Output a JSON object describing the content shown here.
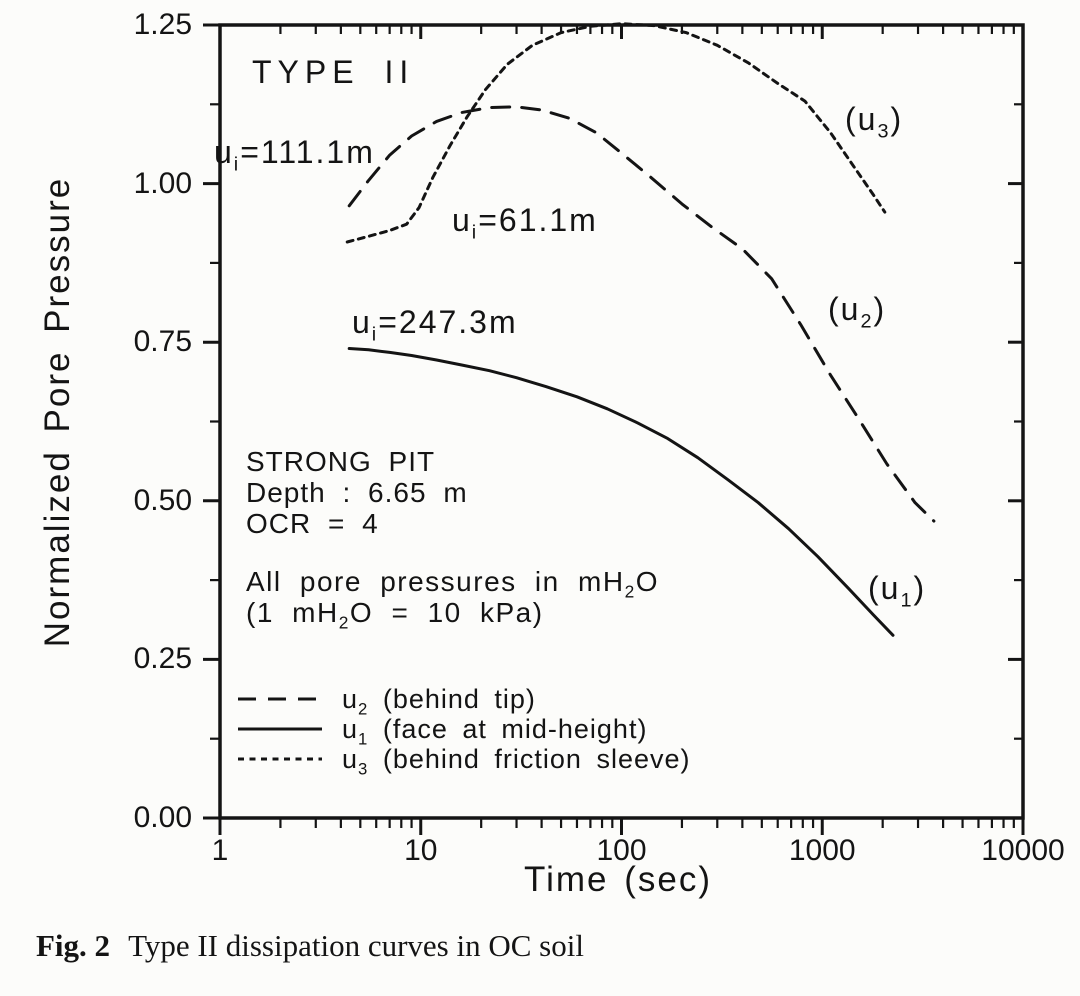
{
  "colors": {
    "ink": "#141414",
    "background": "#fcfcfa"
  },
  "axes": {
    "xlabel": "Time  (sec)",
    "ylabel": "Normalized Pore Pressure"
  },
  "caption": {
    "fig_label": "Fig. 2",
    "text": "Type II dissipation curves in OC soil"
  },
  "annotations": {
    "type_label": "TYPE II",
    "ui_111": {
      "pre": "u",
      "sub": "i",
      "post": "=111.1m"
    },
    "ui_61": {
      "pre": "u",
      "sub": "i",
      "post": "=61.1m"
    },
    "ui_247": {
      "pre": "u",
      "sub": "i",
      "post": "=247.3m"
    },
    "u3_tag": {
      "pre": "(u",
      "sub": "3",
      "post": ")"
    },
    "u2_tag": {
      "pre": "(u",
      "sub": "2",
      "post": ")"
    },
    "u1_tag": {
      "pre": "(u",
      "sub": "1",
      "post": ")"
    },
    "site_info": {
      "line1": "STRONG PIT",
      "line2": "Depth : 6.65 m",
      "line3": "OCR = 4"
    },
    "units_note": {
      "line1_pre": "All pore pressures in mH",
      "line1_sub": "2",
      "line1_post": "O",
      "line2_pre": "(1 mH",
      "line2_sub": "2",
      "line2_post": "O = 10 kPa)"
    }
  },
  "legend": {
    "items": [
      {
        "symbol": "dashed",
        "pre": "u",
        "sub": "2",
        "post": " (behind tip)"
      },
      {
        "symbol": "solid",
        "pre": "u",
        "sub": "1",
        "post": " (face at mid-height)"
      },
      {
        "symbol": "dotted",
        "pre": "u",
        "sub": "3",
        "post": " (behind friction sleeve)"
      }
    ]
  },
  "chart_data": {
    "type": "line",
    "title": "TYPE II",
    "xlabel": "Time (sec)",
    "ylabel": "Normalized Pore Pressure",
    "x_scale": "log",
    "xlim": [
      1,
      10000
    ],
    "ylim": [
      0,
      1.25
    ],
    "grid": false,
    "x_ticks": [
      1,
      10,
      100,
      1000,
      10000
    ],
    "x_tick_labels": [
      "1",
      "10",
      "100",
      "1000",
      "10000"
    ],
    "y_ticks": [
      0,
      0.25,
      0.5,
      0.75,
      1.0,
      1.25
    ],
    "y_tick_labels": [
      "0.00",
      "0.25",
      "0.50",
      "0.75",
      "1.00",
      "1.25"
    ],
    "y_minor_step": 0.125,
    "series": [
      {
        "name": "u2",
        "label": "u2 (behind tip)",
        "initial_pore_pressure": "ui=111.1m",
        "style": "dashed",
        "points": [
          [
            4.4,
            0.965
          ],
          [
            5.5,
            1.005
          ],
          [
            7,
            1.045
          ],
          [
            9,
            1.075
          ],
          [
            12,
            1.098
          ],
          [
            16,
            1.112
          ],
          [
            22,
            1.12
          ],
          [
            30,
            1.121
          ],
          [
            40,
            1.116
          ],
          [
            55,
            1.103
          ],
          [
            75,
            1.08
          ],
          [
            100,
            1.048
          ],
          [
            140,
            1.01
          ],
          [
            200,
            0.968
          ],
          [
            280,
            0.932
          ],
          [
            400,
            0.897
          ],
          [
            560,
            0.85
          ],
          [
            780,
            0.778
          ],
          [
            1100,
            0.698
          ],
          [
            1500,
            0.632
          ],
          [
            2100,
            0.558
          ],
          [
            2900,
            0.497
          ],
          [
            3600,
            0.468
          ]
        ]
      },
      {
        "name": "u1",
        "label": "u1 (face at mid-height)",
        "initial_pore_pressure": "ui=247.3m",
        "style": "solid",
        "points": [
          [
            4.4,
            0.74
          ],
          [
            5.5,
            0.738
          ],
          [
            7,
            0.734
          ],
          [
            9,
            0.729
          ],
          [
            12,
            0.722
          ],
          [
            16,
            0.714
          ],
          [
            22,
            0.705
          ],
          [
            30,
            0.694
          ],
          [
            42,
            0.68
          ],
          [
            60,
            0.664
          ],
          [
            85,
            0.645
          ],
          [
            120,
            0.623
          ],
          [
            170,
            0.598
          ],
          [
            240,
            0.568
          ],
          [
            340,
            0.533
          ],
          [
            480,
            0.497
          ],
          [
            680,
            0.456
          ],
          [
            950,
            0.412
          ],
          [
            1350,
            0.362
          ],
          [
            1800,
            0.32
          ],
          [
            2250,
            0.288
          ]
        ]
      },
      {
        "name": "u3",
        "label": "u3 (behind friction sleeve)",
        "initial_pore_pressure": "ui=61.1m",
        "style": "dotted",
        "points": [
          [
            4.3,
            0.908
          ],
          [
            5.5,
            0.917
          ],
          [
            7,
            0.926
          ],
          [
            8.5,
            0.936
          ],
          [
            9.8,
            0.962
          ],
          [
            11.5,
            1.01
          ],
          [
            14,
            1.06
          ],
          [
            17,
            1.105
          ],
          [
            21,
            1.148
          ],
          [
            27,
            1.188
          ],
          [
            36,
            1.218
          ],
          [
            50,
            1.238
          ],
          [
            70,
            1.248
          ],
          [
            100,
            1.252
          ],
          [
            145,
            1.249
          ],
          [
            210,
            1.238
          ],
          [
            300,
            1.218
          ],
          [
            430,
            1.19
          ],
          [
            600,
            1.158
          ],
          [
            820,
            1.13
          ],
          [
            1100,
            1.08
          ],
          [
            1450,
            1.025
          ],
          [
            1800,
            0.982
          ],
          [
            2050,
            0.955
          ]
        ]
      }
    ]
  }
}
